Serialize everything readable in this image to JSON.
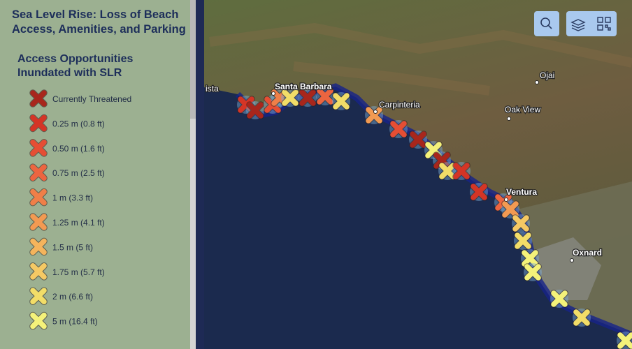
{
  "panel": {
    "title": "Sea Level Rise: Loss of Beach Access, Amenities, and Parking",
    "legend": {
      "title": "Access Opportunities Inundated with SLR",
      "items": [
        {
          "label": "Currently Threatened",
          "color": "#a8261c"
        },
        {
          "label": "0.25 m (0.8 ft)",
          "color": "#d43526"
        },
        {
          "label": "0.50 m (1.6 ft)",
          "color": "#e54e34"
        },
        {
          "label": "0.75 m (2.5 ft)",
          "color": "#ec6540"
        },
        {
          "label": "1 m (3.3 ft)",
          "color": "#ef7f48"
        },
        {
          "label": "1.25 m (4.1 ft)",
          "color": "#f29a52"
        },
        {
          "label": "1.5 m (5 ft)",
          "color": "#f4b45c"
        },
        {
          "label": "1.75 m (5.7 ft)",
          "color": "#f5c964"
        },
        {
          "label": "2 m (6.6 ft)",
          "color": "#f2dd68"
        },
        {
          "label": "5 m (16.4 ft)",
          "color": "#f4f27a"
        }
      ]
    }
  },
  "map": {
    "places": [
      {
        "label": "ista"
      },
      {
        "label": "Santa Barbara"
      },
      {
        "label": "Carpinteria"
      },
      {
        "label": "Ojai"
      },
      {
        "label": "Oak View"
      },
      {
        "label": "Ventura"
      },
      {
        "label": "Oxnard"
      }
    ]
  }
}
